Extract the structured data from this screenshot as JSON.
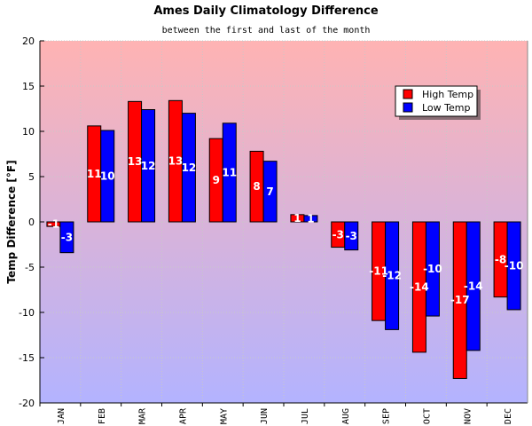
{
  "chart_data": {
    "type": "bar",
    "title": "Ames Daily Climatology Difference",
    "subtitle": "between the first and last of the month",
    "xlabel": "",
    "ylabel": "Temp Difference [°F]",
    "ylim": [
      -20,
      20
    ],
    "yticks": [
      20,
      15,
      10,
      5,
      0,
      -5,
      -10,
      -15,
      -20
    ],
    "categories": [
      "JAN",
      "FEB",
      "MAR",
      "APR",
      "MAY",
      "JUN",
      "JUL",
      "AUG",
      "SEP",
      "OCT",
      "NOV",
      "DEC"
    ],
    "series": [
      {
        "name": "High Temp",
        "color": "#ff0000",
        "values": [
          -0.5,
          10.6,
          13.3,
          13.4,
          9.2,
          7.8,
          0.8,
          -2.8,
          -10.9,
          -14.4,
          -17.3,
          -8.3
        ],
        "labels": [
          "-1",
          "11",
          "13",
          "13",
          "9",
          "8",
          "1",
          "-3",
          "-11",
          "-14",
          "-17",
          "-8"
        ]
      },
      {
        "name": "Low Temp",
        "color": "#0000ff",
        "values": [
          -3.4,
          10.1,
          12.4,
          12.0,
          10.9,
          6.7,
          0.7,
          -3.1,
          -11.9,
          -10.4,
          -14.2,
          -9.7
        ],
        "labels": [
          "-3",
          "10",
          "12",
          "12",
          "11",
          "7",
          "1",
          "-3",
          "-12",
          "-10",
          "-14",
          "-10"
        ]
      }
    ],
    "legend": {
      "position": "top-right",
      "entries": [
        "High Temp",
        "Low Temp"
      ]
    },
    "grid": true,
    "background_gradient": [
      "#ffb3b3",
      "#b3b3ff"
    ]
  }
}
